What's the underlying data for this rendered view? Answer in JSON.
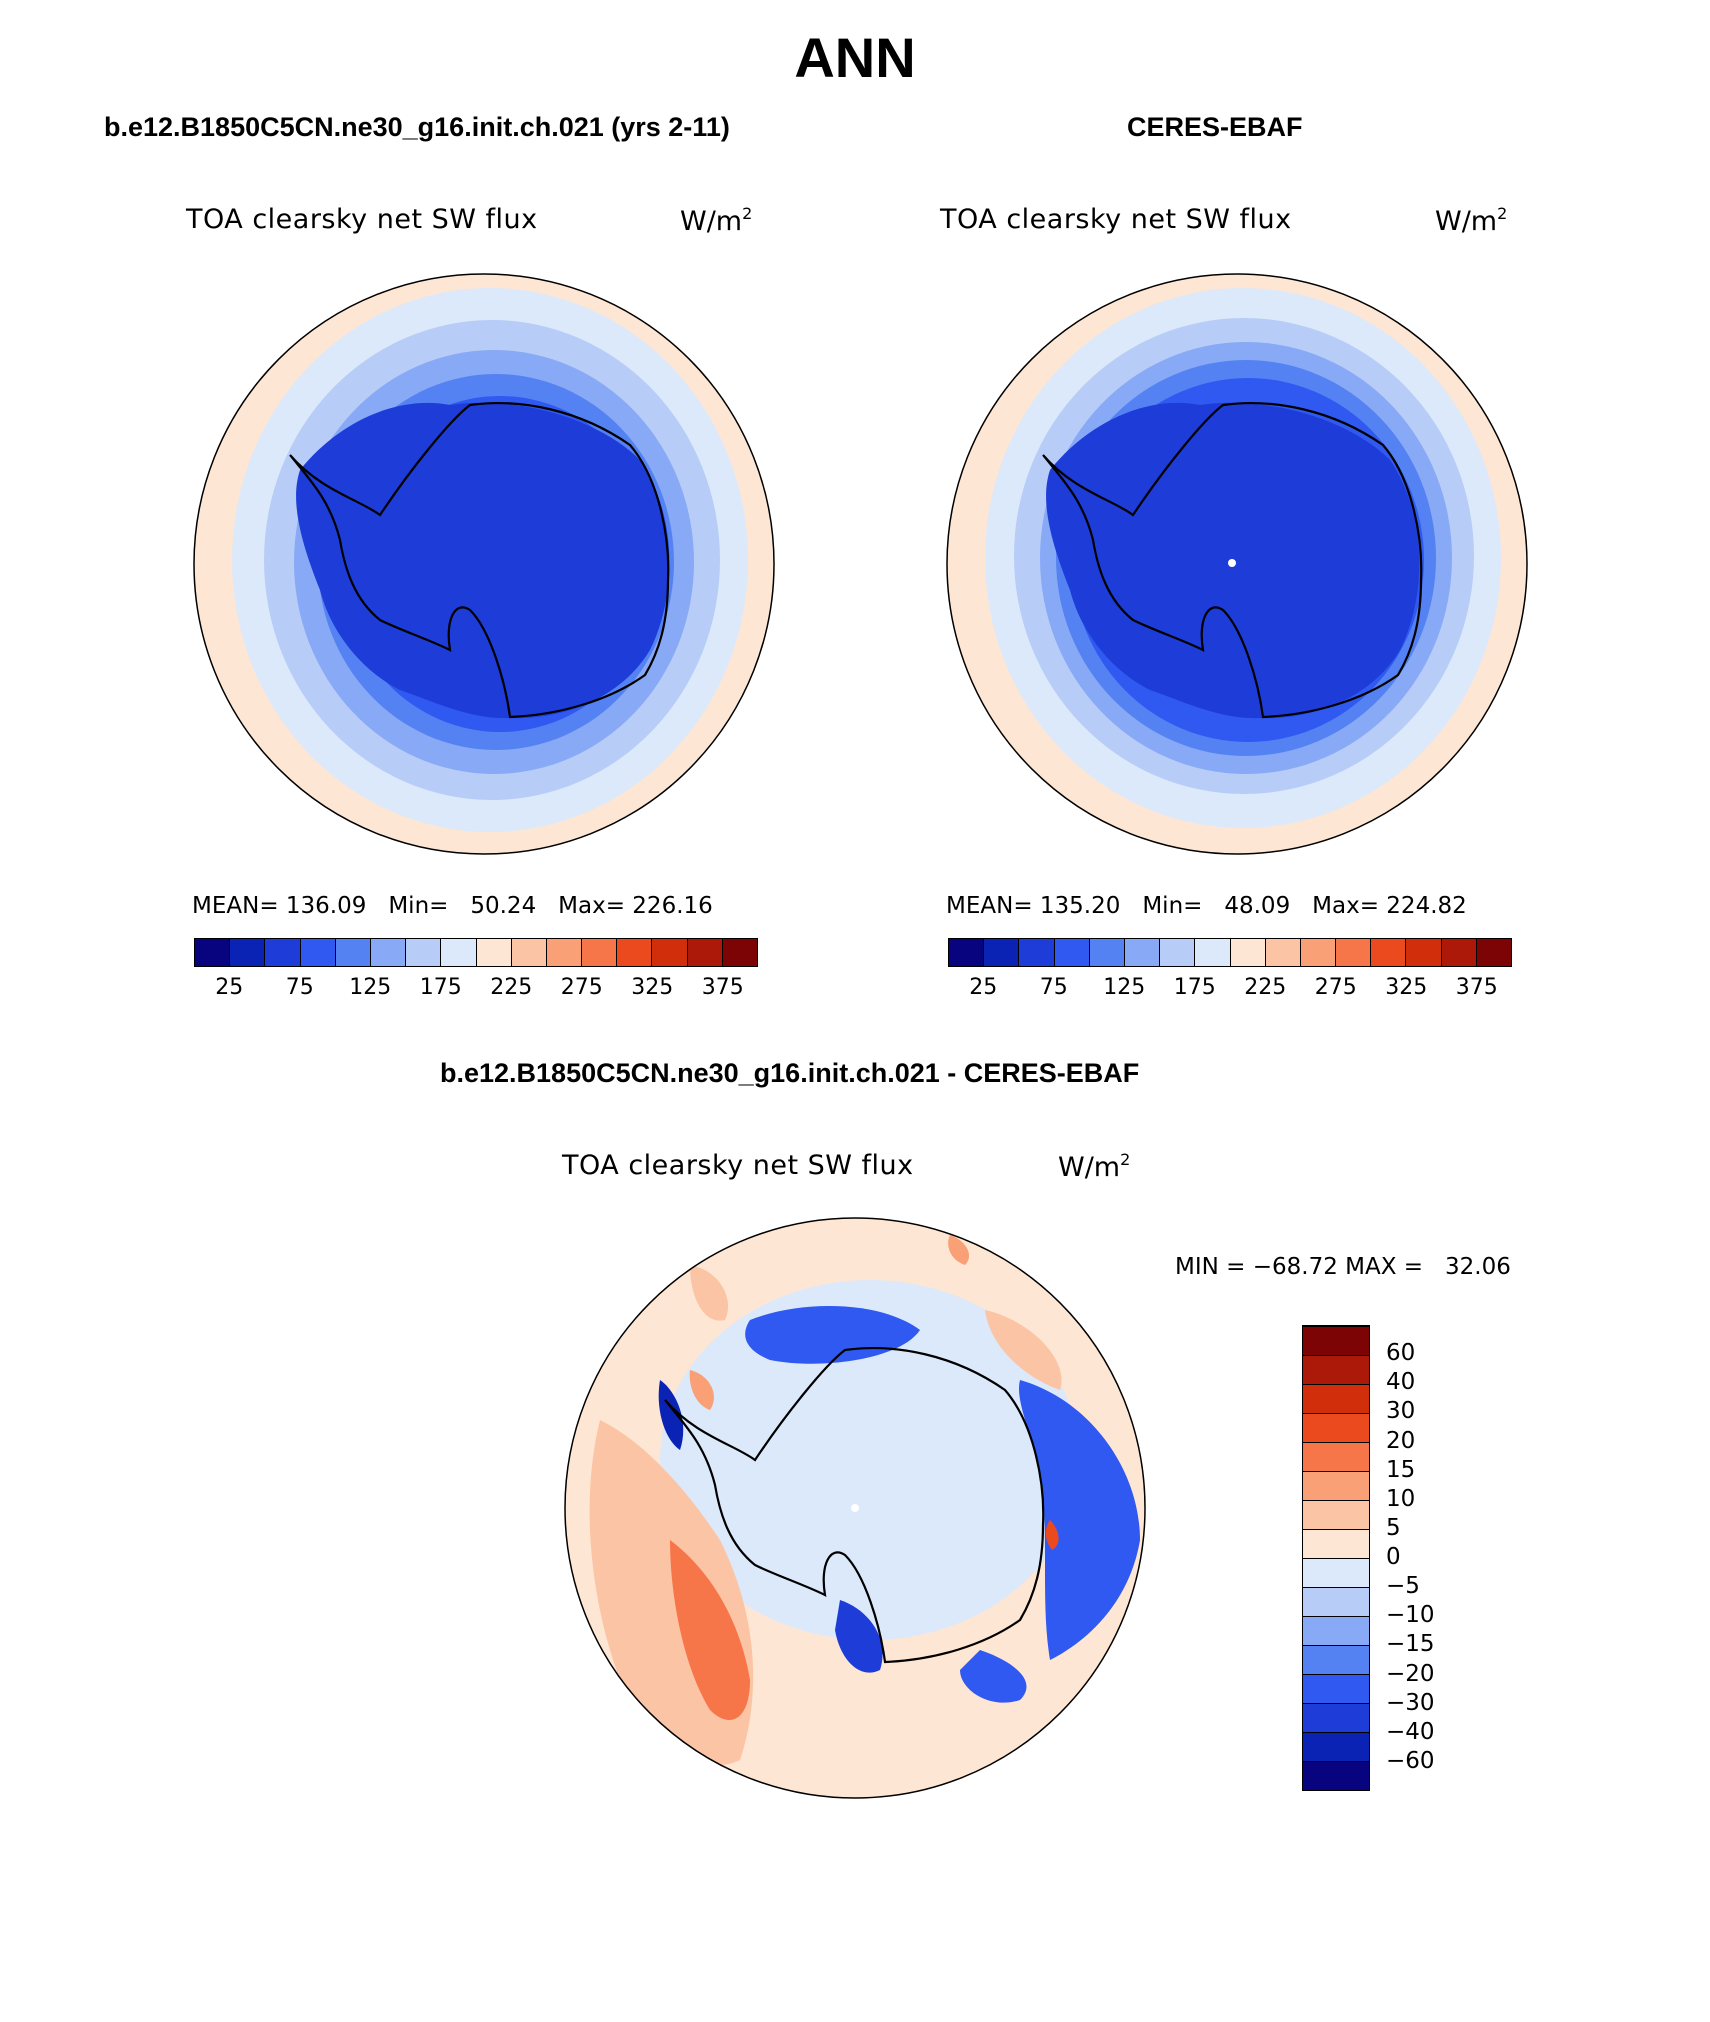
{
  "page": {
    "title": "ANN"
  },
  "panels": [
    {
      "id": "model",
      "title": "b.e12.B1850C5CN.ne30_g16.init.ch.021 (yrs 2-11)",
      "field": "TOA clearsky net SW flux",
      "units": "W/m",
      "units_sup": "2",
      "stats": {
        "mean_label": "MEAN=",
        "mean": "136.09",
        "min_label": "Min=",
        "min": "50.24",
        "max_label": "Max=",
        "max": "226.16"
      },
      "colorbar_ticks": [
        "25",
        "75",
        "125",
        "175",
        "225",
        "275",
        "325",
        "375"
      ]
    },
    {
      "id": "obs",
      "title": "CERES-EBAF",
      "field": "TOA clearsky net SW flux",
      "units": "W/m",
      "units_sup": "2",
      "stats": {
        "mean_label": "MEAN=",
        "mean": "135.20",
        "min_label": "Min=",
        "min": "48.09",
        "max_label": "Max=",
        "max": "224.82"
      },
      "colorbar_ticks": [
        "25",
        "75",
        "125",
        "175",
        "225",
        "275",
        "325",
        "375"
      ]
    },
    {
      "id": "diff",
      "title": "b.e12.B1850C5CN.ne30_g16.init.ch.021 - CERES-EBAF",
      "field": "TOA clearsky net SW flux",
      "units": "W/m",
      "units_sup": "2",
      "stats_text": "MIN = −68.72 MAX =   32.06",
      "colorbar_ticks": [
        "60",
        "40",
        "30",
        "20",
        "15",
        "10",
        "5",
        "0",
        "−5",
        "−10",
        "−15",
        "−20",
        "−30",
        "−40",
        "−60"
      ]
    }
  ],
  "colors": {
    "abs_scale": [
      "#08037f",
      "#0a23b4",
      "#1d3cd8",
      "#2f59f0",
      "#5582f2",
      "#88a9f5",
      "#b7cdf8",
      "#dce9fb",
      "#fde6d3",
      "#fbc5a5",
      "#f9a076",
      "#f6764a",
      "#eb4a1e",
      "#d12e0c",
      "#ad1908",
      "#7d0404"
    ],
    "diff_scale": [
      "#08037f",
      "#0a23b4",
      "#1d3cd8",
      "#2f59f0",
      "#5582f2",
      "#88a9f5",
      "#b7cdf8",
      "#dce9fb",
      "#fde6d3",
      "#fbc5a5",
      "#f9a076",
      "#f6764a",
      "#eb4a1e",
      "#d12e0c",
      "#ad1908",
      "#7d0404"
    ]
  }
}
